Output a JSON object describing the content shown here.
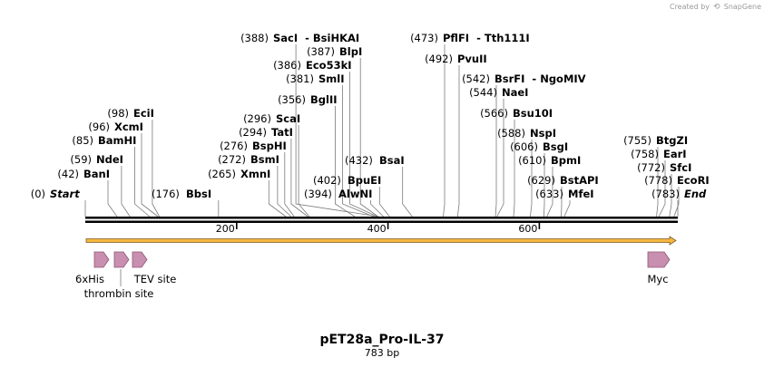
{
  "credit": "Created by",
  "credit_brand": "SnapGene",
  "title": "pET28a_Pro-IL-37",
  "length_label": "783 bp",
  "total_bp": 783,
  "ruler_ticks": [
    {
      "pos": 200,
      "label": "200"
    },
    {
      "pos": 400,
      "label": "400"
    },
    {
      "pos": 600,
      "label": "600"
    }
  ],
  "sites": [
    {
      "name": "Start",
      "pos": 0,
      "paren": "(0)",
      "italic": true
    },
    {
      "name": "BanI",
      "pos": 42,
      "paren": "(42)"
    },
    {
      "name": "NdeI",
      "pos": 59,
      "paren": "(59)"
    },
    {
      "name": "BamHI",
      "pos": 85,
      "paren": "(85)"
    },
    {
      "name": "XcmI",
      "pos": 96,
      "paren": "(96)"
    },
    {
      "name": "EciI",
      "pos": 98,
      "paren": "(98)"
    },
    {
      "name": "BbsI",
      "pos": 176,
      "paren": "(176)"
    },
    {
      "name": "XmnI",
      "pos": 265,
      "paren": "(265)"
    },
    {
      "name": "BsmI",
      "pos": 272,
      "paren": "(272)"
    },
    {
      "name": "BspHI",
      "pos": 276,
      "paren": "(276)"
    },
    {
      "name": "TatI",
      "pos": 294,
      "paren": "(294)"
    },
    {
      "name": "ScaI",
      "pos": 296,
      "paren": "(296)"
    },
    {
      "name": "BglII",
      "pos": 356,
      "paren": "(356)"
    },
    {
      "name": "SmlI",
      "pos": 381,
      "paren": "(381)"
    },
    {
      "name": "Eco53kI",
      "pos": 386,
      "paren": "(386)"
    },
    {
      "name": "BlpI",
      "pos": 387,
      "paren": "(387)"
    },
    {
      "name": "SacI",
      "pos": 388,
      "paren": "(388)",
      "extra": "- BsiHKAI"
    },
    {
      "name": "AlwNI",
      "pos": 394,
      "paren": "(394)"
    },
    {
      "name": "BpuEI",
      "pos": 402,
      "paren": "(402)"
    },
    {
      "name": "BsaI",
      "pos": 432,
      "paren": "(432)"
    },
    {
      "name": "PflFI",
      "pos": 473,
      "paren": "(473)",
      "extra": "- Tth111I"
    },
    {
      "name": "PvuII",
      "pos": 492,
      "paren": "(492)"
    },
    {
      "name": "BsrFI",
      "pos": 542,
      "paren": "(542)",
      "extra": "- NgoMIV"
    },
    {
      "name": "NaeI",
      "pos": 544,
      "paren": "(544)"
    },
    {
      "name": "Bsu10I",
      "pos": 566,
      "paren": "(566)"
    },
    {
      "name": "NspI",
      "pos": 588,
      "paren": "(588)"
    },
    {
      "name": "BsgI",
      "pos": 606,
      "paren": "(606)"
    },
    {
      "name": "BpmI",
      "pos": 610,
      "paren": "(610)"
    },
    {
      "name": "BstAPI",
      "pos": 629,
      "paren": "(629)"
    },
    {
      "name": "MfeI",
      "pos": 633,
      "paren": "(633)"
    },
    {
      "name": "BtgZI",
      "pos": 755,
      "paren": "(755)"
    },
    {
      "name": "EarI",
      "pos": 758,
      "paren": "(758)"
    },
    {
      "name": "SfcI",
      "pos": 772,
      "paren": "(772)"
    },
    {
      "name": "EcoRI",
      "pos": 778,
      "paren": "(778)"
    },
    {
      "name": "End",
      "pos": 783,
      "paren": "(783)",
      "italic": true
    }
  ],
  "features": [
    {
      "name": "6xHis",
      "pos": 8
    },
    {
      "name": "thrombin site",
      "pos": 35
    },
    {
      "name": "TEV site",
      "pos": 55
    },
    {
      "name": "Myc",
      "pos": 750
    }
  ],
  "colors": {
    "feature_fill": "#c98fb0",
    "feature_stroke": "#8a5876",
    "orf_fill": "#f6b73c",
    "orf_stroke": "#7a5a2a",
    "backbone": "#000000",
    "leader": "#7a7a7a"
  }
}
